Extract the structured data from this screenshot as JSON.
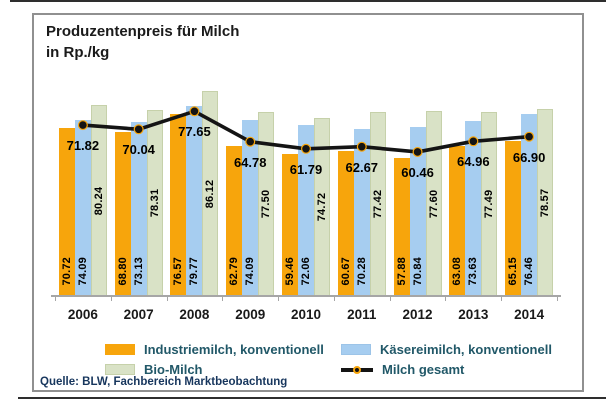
{
  "title": {
    "line1": "Produzentenpreis für Milch",
    "line2": "in Rp./kg"
  },
  "source": "Quelle: BLW, Fachbereich Marktbeobachtung",
  "colors": {
    "industriemilch": "#F7A50C",
    "kaesereimilch": "#A6CDF0",
    "bio": "#D9E2C6",
    "line": "#141414",
    "legend_text": "#215868",
    "axis": "#a6a6a6"
  },
  "legend": [
    {
      "label": "Industriemilch, konventionell",
      "type": "bar",
      "swatch": "s0"
    },
    {
      "label": "Käsereimilch, konventionell",
      "type": "bar",
      "swatch": "s1"
    },
    {
      "label": "Bio-Milch",
      "type": "bar",
      "swatch": "s2"
    },
    {
      "label": "Milch gesamt",
      "type": "line",
      "swatch": "line"
    }
  ],
  "chart_data": {
    "type": "bar",
    "title": "Produzentenpreis für Milch in Rp./kg",
    "xlabel": "",
    "ylabel": "Rp./kg",
    "ylim": [
      0,
      88
    ],
    "grid": false,
    "legend_position": "bottom",
    "value_labels": true,
    "categories": [
      "2006",
      "2007",
      "2008",
      "2009",
      "2010",
      "2011",
      "2012",
      "2013",
      "2014"
    ],
    "series": [
      {
        "name": "Industriemilch, konventionell",
        "type": "bar",
        "values": [
          70.72,
          68.8,
          76.57,
          62.79,
          59.46,
          60.67,
          57.88,
          63.08,
          65.15
        ]
      },
      {
        "name": "Käsereimilch, konventionell",
        "type": "bar",
        "values": [
          74.09,
          73.13,
          79.77,
          74.09,
          72.06,
          70.28,
          70.84,
          73.63,
          76.46
        ]
      },
      {
        "name": "Bio-Milch",
        "type": "bar",
        "values": [
          80.24,
          78.31,
          86.12,
          77.5,
          74.72,
          77.42,
          77.6,
          77.49,
          78.57
        ]
      },
      {
        "name": "Milch gesamt",
        "type": "line",
        "values": [
          71.82,
          70.04,
          77.65,
          64.78,
          61.79,
          62.67,
          60.46,
          64.96,
          66.9
        ]
      }
    ]
  }
}
